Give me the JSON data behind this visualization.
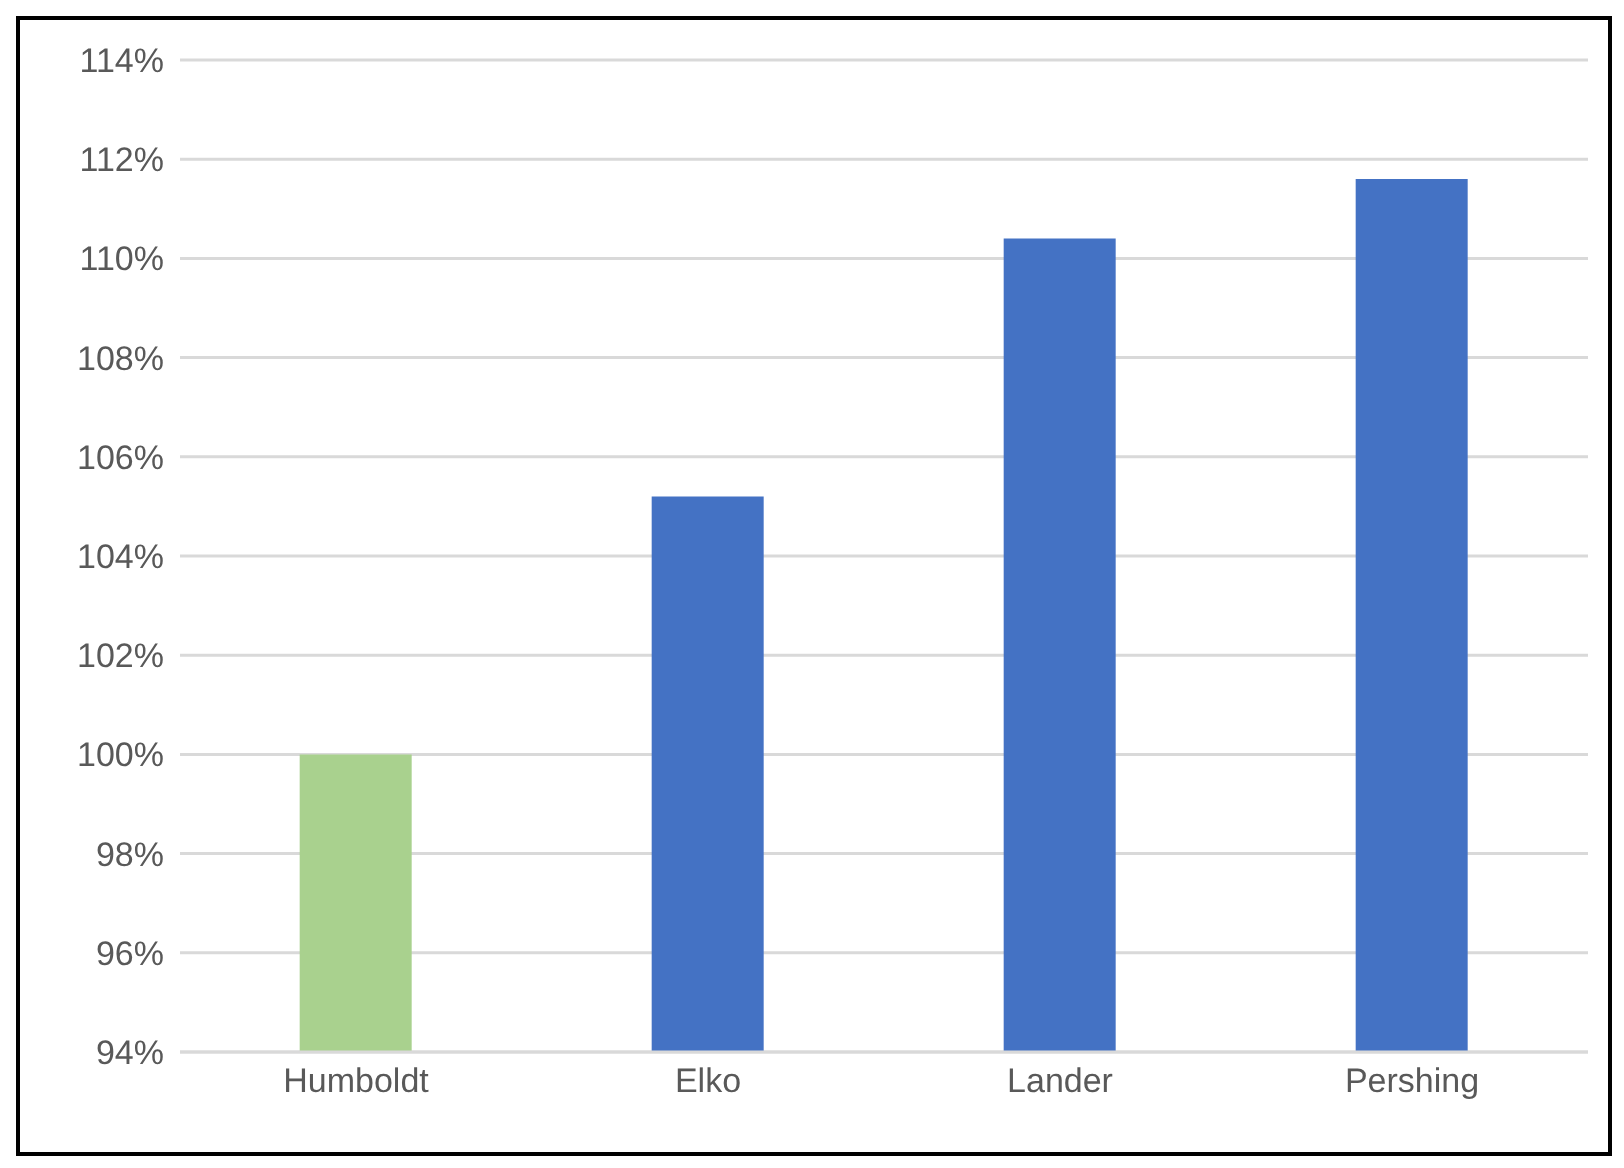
{
  "chart_data": {
    "type": "bar",
    "categories": [
      "Humboldt",
      "Elko",
      "Lander",
      "Pershing"
    ],
    "values": [
      100,
      105.2,
      110.4,
      111.6
    ],
    "colors": [
      "#a9d18e",
      "#4472c4",
      "#4472c4",
      "#4472c4"
    ],
    "ylim": [
      94,
      114
    ],
    "yticks": [
      {
        "value": 94,
        "label": "94%"
      },
      {
        "value": 96,
        "label": "96%"
      },
      {
        "value": 98,
        "label": "98%"
      },
      {
        "value": 100,
        "label": "100%"
      },
      {
        "value": 102,
        "label": "102%"
      },
      {
        "value": 104,
        "label": "104%"
      },
      {
        "value": 106,
        "label": "106%"
      },
      {
        "value": 108,
        "label": "108%"
      },
      {
        "value": 110,
        "label": "110%"
      },
      {
        "value": 112,
        "label": "112%"
      },
      {
        "value": 114,
        "label": "114%"
      }
    ],
    "grid": "y"
  }
}
